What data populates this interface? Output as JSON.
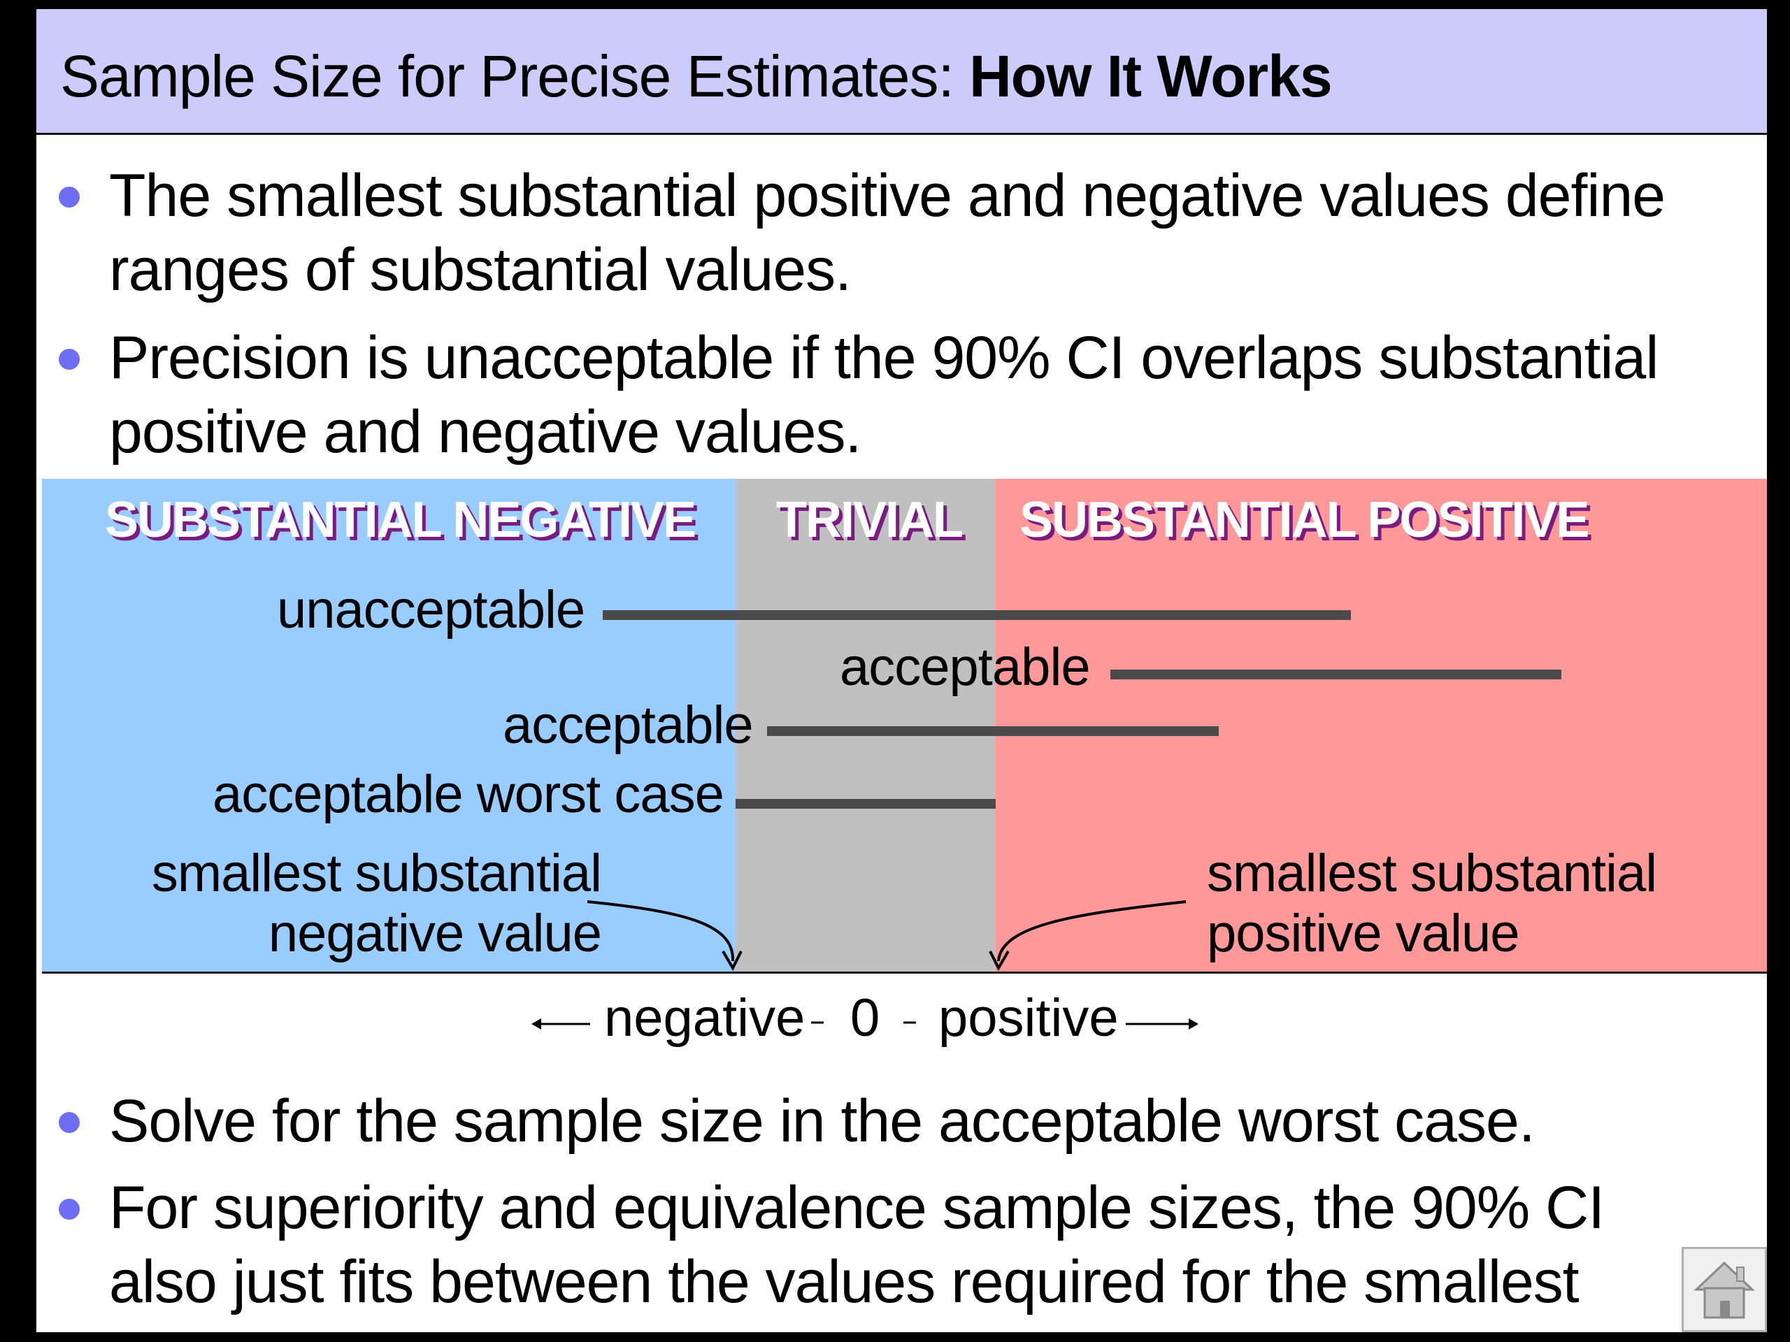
{
  "title": {
    "prefix": "Sample Size for Precise Estimates: ",
    "bold": "How It Works"
  },
  "bullets_top": [
    "The smallest substantial positive and negative values define ranges of substantial values.",
    "Precision is unacceptable if the 90% CI overlaps substantial positive and negative values."
  ],
  "diagram": {
    "regions": {
      "negative": "SUBSTANTIAL NEGATIVE",
      "trivial": "TRIVIAL",
      "positive": "SUBSTANTIAL POSITIVE"
    },
    "rows": [
      {
        "label": "unacceptable"
      },
      {
        "label": "acceptable"
      },
      {
        "label": "acceptable"
      },
      {
        "label": "acceptable worst case"
      }
    ],
    "annotations": {
      "negative_threshold": "smallest substantial negative value",
      "positive_threshold": "smallest substantial positive value"
    },
    "colors": {
      "negative": "#99ccff",
      "trivial": "#c0c0c0",
      "positive": "#ff9999",
      "bar": "#4a4a4a",
      "label_shadow": "#7a1b80"
    }
  },
  "axis": {
    "negative": "negative",
    "zero": "0",
    "positive": "positive"
  },
  "bullets_bottom": [
    "Solve for the sample size in the acceptable worst case.",
    "For superiority and equivalence sample sizes, the 90% CI also just fits between the values required for the smallest substantials."
  ],
  "nav": {
    "home_icon": "home-icon"
  }
}
